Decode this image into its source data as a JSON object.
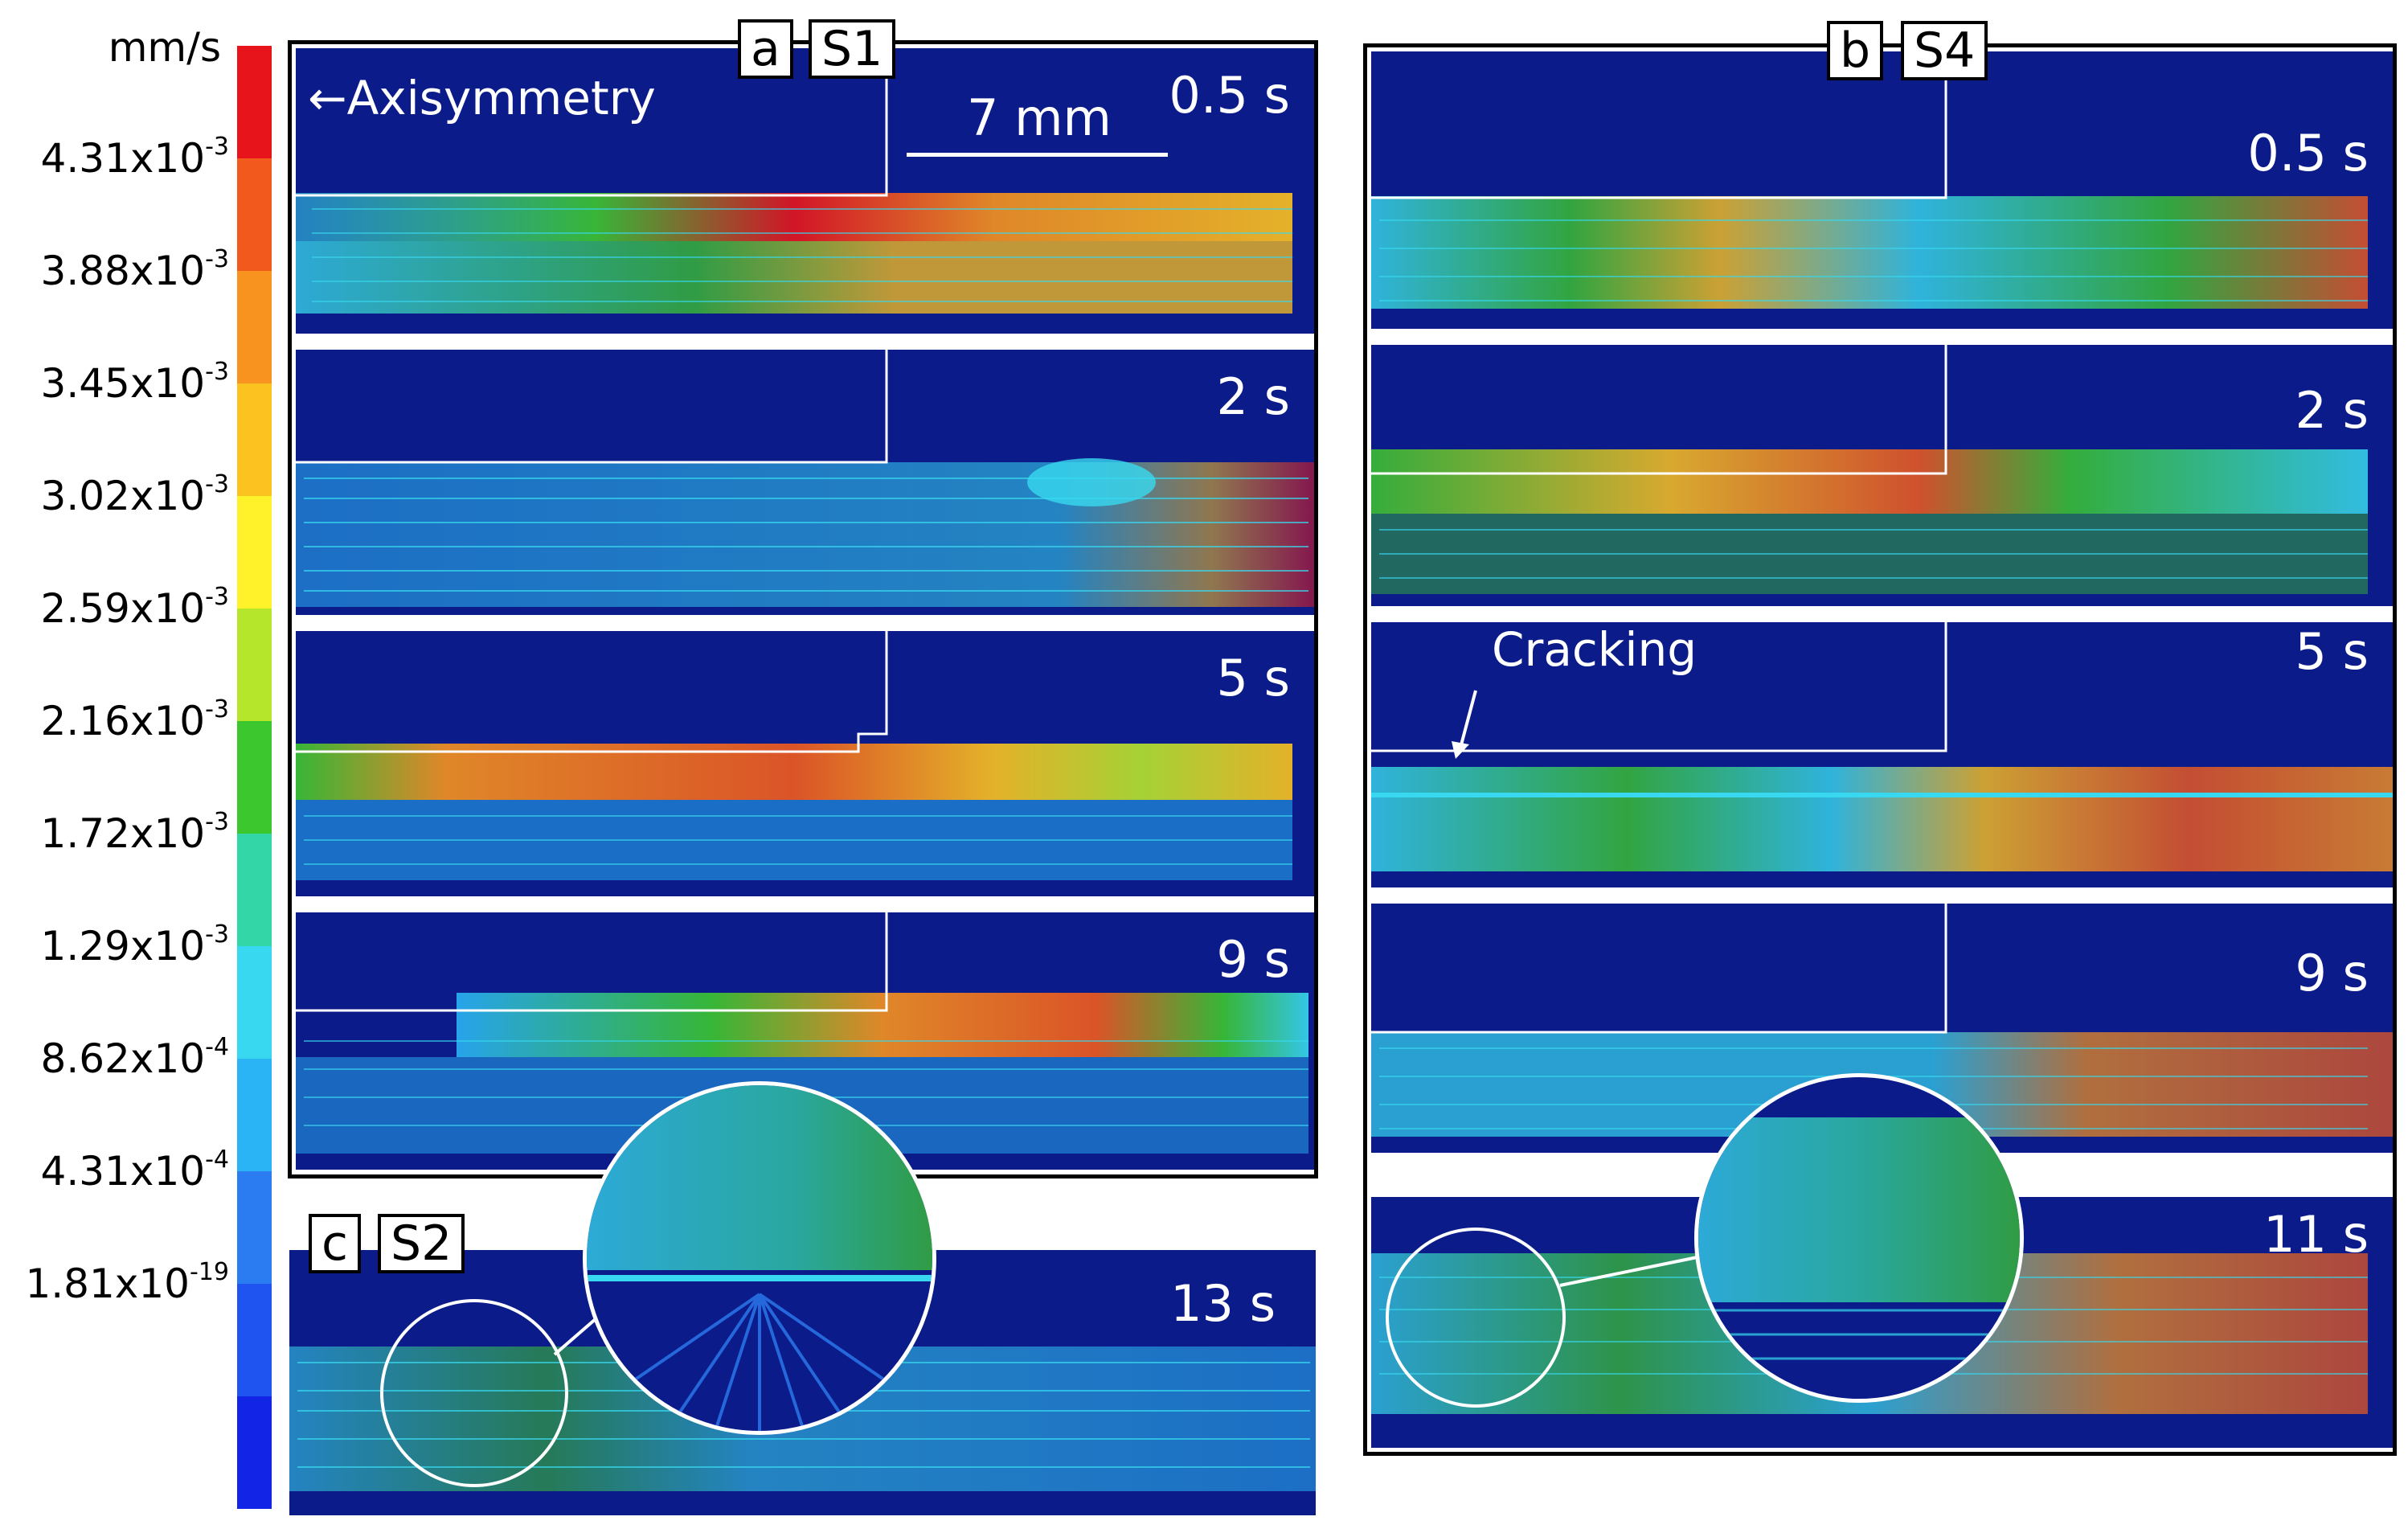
{
  "colorbar": {
    "unit": "mm/s",
    "ticks": [
      "4.31x10",
      "3.88x10",
      "3.45x10",
      "3.02x10",
      "2.59x10",
      "2.16x10",
      "1.72x10",
      "1.29x10",
      "8.62x10",
      "4.31x10",
      "1.81x10"
    ],
    "exponents": [
      "-3",
      "-3",
      "-3",
      "-3",
      "-3",
      "-3",
      "-3",
      "-3",
      "-4",
      "-4",
      "-19"
    ],
    "colors": [
      "#e8141c",
      "#f25a1d",
      "#f7931e",
      "#fcc21f",
      "#fff22a",
      "#b6e62c",
      "#3cc72e",
      "#33d6a6",
      "#38d9f0",
      "#2ab3f5",
      "#2b7cf0",
      "#1f54f0",
      "#1224e6"
    ]
  },
  "panel_a": {
    "letter": "a",
    "sample": "S1",
    "axisymmetry_label": "Axisymmetry",
    "scale_label": "7 mm",
    "times": [
      "0.5 s",
      "2 s",
      "5 s",
      "9 s"
    ]
  },
  "panel_b": {
    "letter": "b",
    "sample": "S4",
    "cracking_label": "Cracking",
    "times": [
      "0.5 s",
      "2 s",
      "5 s",
      "9 s",
      "11 s"
    ]
  },
  "panel_c": {
    "letter": "c",
    "sample": "S2",
    "time": "13 s"
  },
  "styles": {
    "field_background": "#0b1b8a",
    "outline": "#ffffff"
  }
}
